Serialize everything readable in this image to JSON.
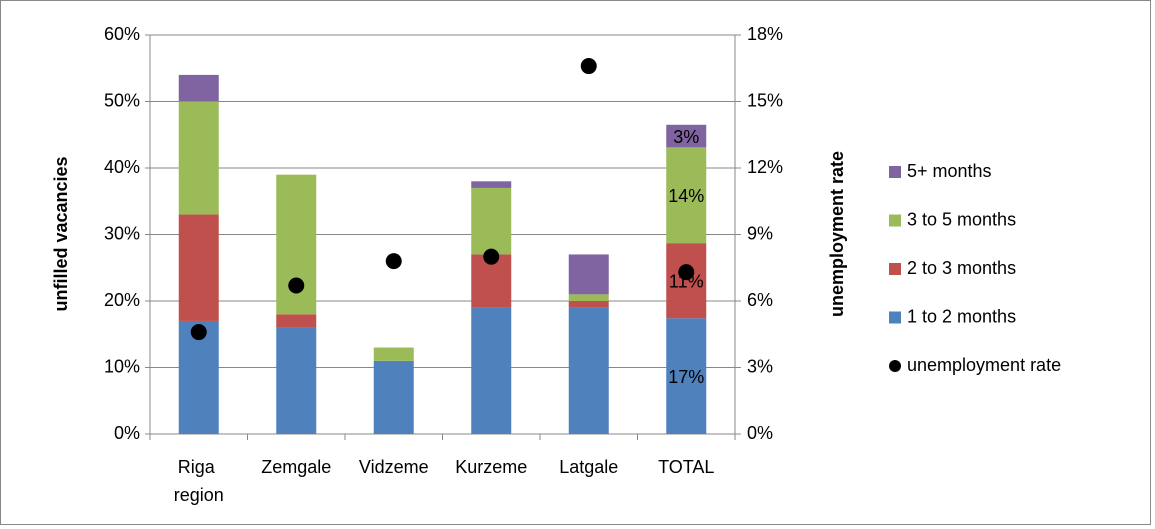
{
  "chart_data": {
    "type": "bar",
    "categories": [
      "Riga region",
      "Zemgale",
      "Vidzeme",
      "Kurzeme",
      "Latgale",
      "TOTAL"
    ],
    "y_label": "unfilled vacancies",
    "y2_label": "unemployment rate",
    "ylim": [
      0,
      60
    ],
    "yticks": [
      {
        "value": 0,
        "label": "0%"
      },
      {
        "value": 10,
        "label": "10%"
      },
      {
        "value": 20,
        "label": "20%"
      },
      {
        "value": 30,
        "label": "30%"
      },
      {
        "value": 40,
        "label": "40%"
      },
      {
        "value": 50,
        "label": "50%"
      },
      {
        "value": 60,
        "label": "60%"
      }
    ],
    "y2lim": [
      0,
      18
    ],
    "y2ticks": [
      {
        "value": 0,
        "label": "0%"
      },
      {
        "value": 3,
        "label": "3%"
      },
      {
        "value": 6,
        "label": "6%"
      },
      {
        "value": 9,
        "label": "9%"
      },
      {
        "value": 12,
        "label": "12%"
      },
      {
        "value": 15,
        "label": "15%"
      },
      {
        "value": 18,
        "label": "18%"
      }
    ],
    "grid": true,
    "legend": "right",
    "series": [
      {
        "name": "1 to 2 months",
        "color": "#4f81bd",
        "values": [
          17,
          16,
          11,
          19,
          19,
          17.4
        ],
        "value_labels": [
          null,
          null,
          null,
          null,
          null,
          "17%"
        ]
      },
      {
        "name": "2 to 3 months",
        "color": "#c0504d",
        "values": [
          16,
          2,
          0,
          8,
          1,
          11.3
        ],
        "value_labels": [
          null,
          null,
          null,
          null,
          null,
          "11%"
        ]
      },
      {
        "name": "3 to 5 months",
        "color": "#9bbb59",
        "values": [
          17,
          21,
          2,
          10,
          1,
          14.4
        ],
        "value_labels": [
          null,
          null,
          null,
          null,
          null,
          "14%"
        ]
      },
      {
        "name": "5+ months",
        "color": "#8064a2",
        "values": [
          4,
          0,
          0,
          1,
          6,
          3.4
        ],
        "value_labels": [
          null,
          null,
          null,
          null,
          null,
          "3%"
        ]
      },
      {
        "name": "unemployment rate",
        "color": "#000000",
        "type": "scatter",
        "axis": "y2",
        "values": [
          4.6,
          6.7,
          7.8,
          8.0,
          16.6,
          7.3
        ]
      }
    ]
  }
}
